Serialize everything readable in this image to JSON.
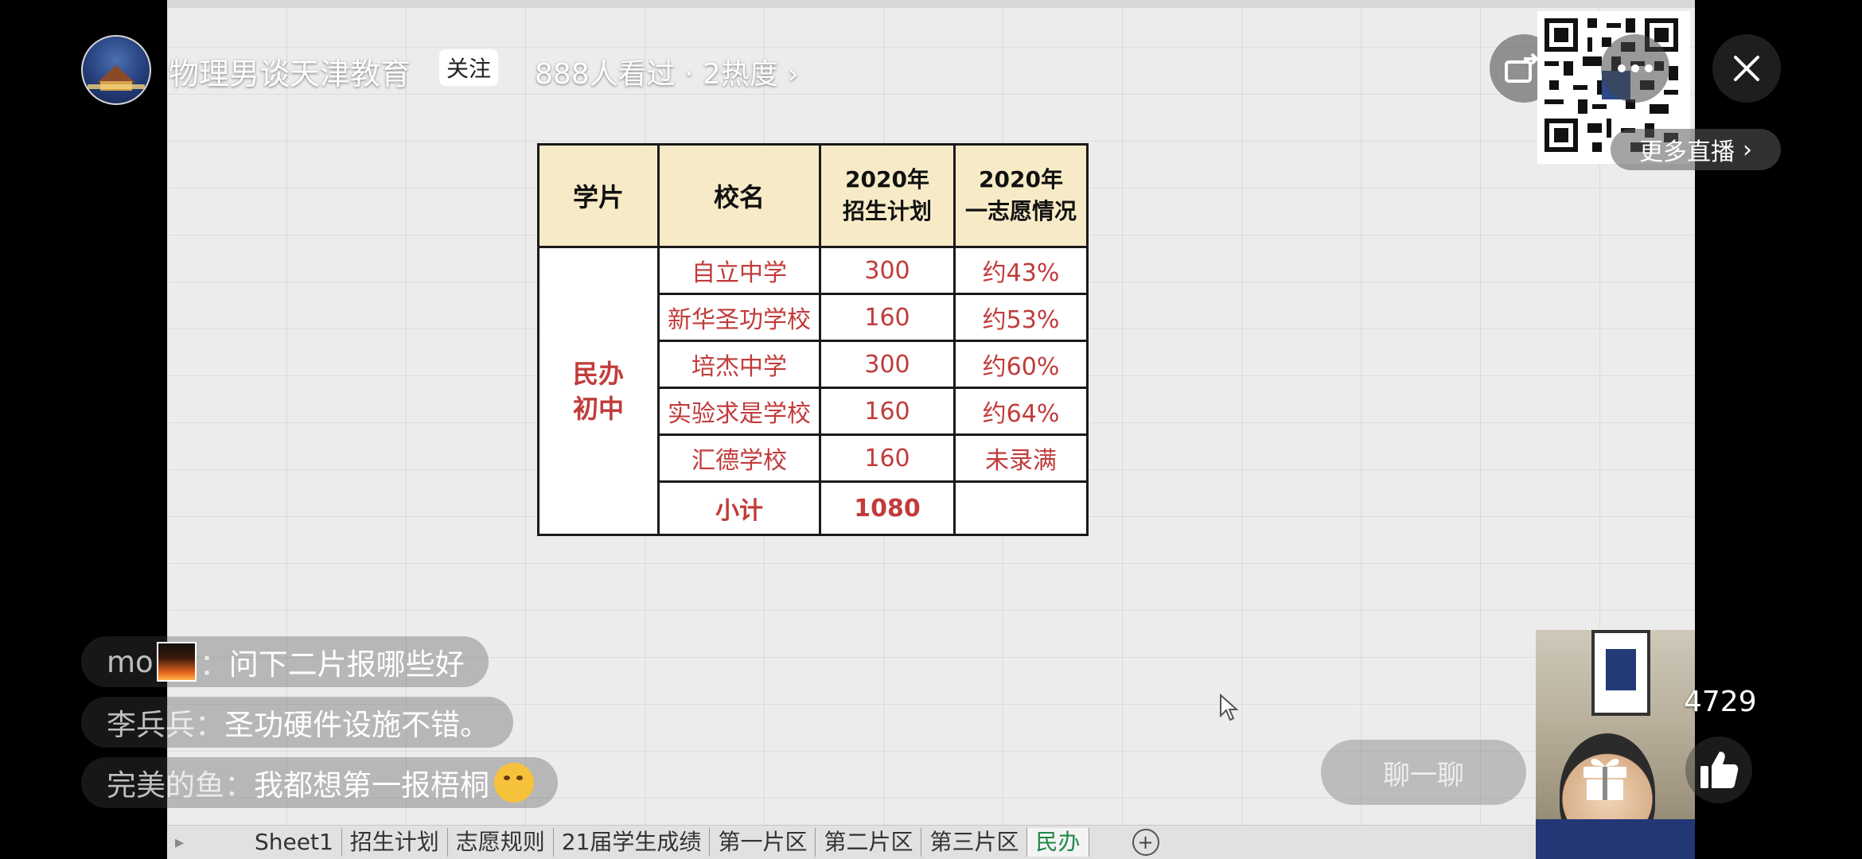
{
  "host": {
    "name": "物理男谈天津教育",
    "follow_label": "关注",
    "viewers": "888人看过 · 2热度 ›"
  },
  "more_live": {
    "label": "更多直播",
    "chevron": "›"
  },
  "table": {
    "headers": {
      "region": "学片",
      "school": "校名",
      "plan_line1": "2020年",
      "plan_line2": "招生计划",
      "first_line1": "2020年",
      "first_line2": "一志愿情况"
    },
    "region_line1": "民办",
    "region_line2": "初中",
    "rows": [
      {
        "school": "自立中学",
        "plan": "300",
        "first": "约43%"
      },
      {
        "school": "新华圣功学校",
        "plan": "160",
        "first": "约53%"
      },
      {
        "school": "培杰中学",
        "plan": "300",
        "first": "约60%"
      },
      {
        "school": "实验求是学校",
        "plan": "160",
        "first": "约64%"
      },
      {
        "school": "汇德学校",
        "plan": "160",
        "first": "未录满"
      }
    ],
    "subtotal": {
      "label": "小计",
      "plan": "1080",
      "first": ""
    }
  },
  "sheet_tabs": [
    "Sheet1",
    "招生计划",
    "志愿规则",
    "21届学生成绩",
    "第一片区",
    "第二片区",
    "第三片区",
    "民办"
  ],
  "active_tab": "民办",
  "chat": [
    {
      "user": "mo",
      "sep": "：",
      "msg": "问下二片报哪些好"
    },
    {
      "user": "李兵兵",
      "sep": "：",
      "msg": "圣功硬件设施不错。"
    },
    {
      "user": "完美的鱼",
      "sep": "：",
      "msg": "我都想第一报梧桐"
    }
  ],
  "chat_input_placeholder": "聊一聊",
  "like_count": "4729",
  "icons": {
    "close": "close-icon",
    "more": "more-dots-icon",
    "share": "share-icon",
    "gift": "gift-icon",
    "like": "thumbs-up-icon",
    "qr": "qr-code-icon"
  },
  "colors": {
    "header_fill": "#f7ebc7",
    "table_text_red": "#c23b3b",
    "active_tab_green": "#1e8a48"
  }
}
